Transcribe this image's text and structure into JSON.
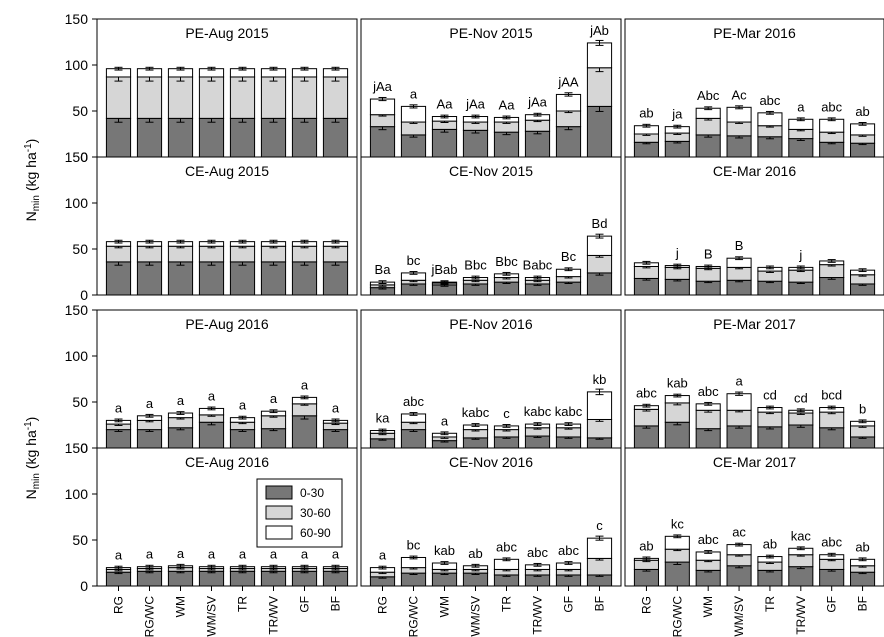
{
  "figure": {
    "ylabel_top": "N",
    "ylabel_sub": "min",
    "ylabel_rest": " (kg ha",
    "ylabel_sup": "-1",
    "ylabel_end": ")",
    "legend": [
      {
        "name": "0-30",
        "color": "#777777"
      },
      {
        "name": "30-60",
        "color": "#d6d6d6"
      },
      {
        "name": "60-90",
        "color": "#ffffff"
      }
    ],
    "yticks": [
      "0",
      "50",
      "100",
      "150"
    ],
    "categories": [
      "RG",
      "RG/WC",
      "WM",
      "WM/SV",
      "TR",
      "TR/WV",
      "GF",
      "BF"
    ]
  },
  "chart_data": [
    {
      "type": "bar",
      "title": "PE-Aug 2015",
      "categories": [
        "RG",
        "RG/WC",
        "WM",
        "WM/SV",
        "TR",
        "TR/WV",
        "GF",
        "BF"
      ],
      "ylim": [
        0,
        150
      ],
      "series": [
        {
          "name": "0-30",
          "values": [
            42,
            42,
            42,
            42,
            42,
            42,
            42,
            42
          ]
        },
        {
          "name": "30-60",
          "values": [
            45,
            45,
            45,
            45,
            45,
            45,
            45,
            45
          ]
        },
        {
          "name": "60-90",
          "values": [
            9,
            9,
            9,
            9,
            9,
            9,
            9,
            9
          ]
        }
      ],
      "labels": [
        "",
        "",
        "",
        "",
        "",
        "",
        "",
        ""
      ]
    },
    {
      "type": "bar",
      "title": "PE-Nov 2015",
      "categories": [
        "RG",
        "RG/WC",
        "WM",
        "WM/SV",
        "TR",
        "TR/WV",
        "GF",
        "BF"
      ],
      "ylim": [
        0,
        150
      ],
      "series": [
        {
          "name": "0-30",
          "values": [
            33,
            24,
            30,
            29,
            27,
            28,
            33,
            55
          ]
        },
        {
          "name": "30-60",
          "values": [
            13,
            14,
            9,
            9,
            11,
            12,
            17,
            42
          ]
        },
        {
          "name": "60-90",
          "values": [
            17,
            17,
            5,
            6,
            5,
            6,
            18,
            27
          ]
        }
      ],
      "labels": [
        "jAa",
        "a",
        "Aa",
        "jAa",
        "Aa",
        "jAa",
        "jAA",
        "jAb"
      ]
    },
    {
      "type": "bar",
      "title": "PE-Mar 2016",
      "categories": [
        "RG",
        "RG/WC",
        "WM",
        "WM/SV",
        "TR",
        "TR/WV",
        "GF",
        "BF"
      ],
      "ylim": [
        0,
        150
      ],
      "series": [
        {
          "name": "0-30",
          "values": [
            16,
            17,
            24,
            23,
            22,
            20,
            16,
            15
          ]
        },
        {
          "name": "30-60",
          "values": [
            9,
            9,
            18,
            15,
            12,
            10,
            11,
            9
          ]
        },
        {
          "name": "60-90",
          "values": [
            9,
            7,
            11,
            16,
            14,
            11,
            14,
            12
          ]
        }
      ],
      "labels": [
        "ab",
        "ja",
        "Abc",
        "Ac",
        "abc",
        "a",
        "abc",
        "ab"
      ]
    },
    {
      "type": "bar",
      "title": "CE-Aug 2015",
      "categories": [
        "RG",
        "RG/WC",
        "WM",
        "WM/SV",
        "TR",
        "TR/WV",
        "GF",
        "BF"
      ],
      "ylim": [
        0,
        150
      ],
      "series": [
        {
          "name": "0-30",
          "values": [
            36,
            36,
            36,
            36,
            36,
            36,
            36,
            36
          ]
        },
        {
          "name": "30-60",
          "values": [
            17,
            17,
            17,
            17,
            17,
            17,
            17,
            17
          ]
        },
        {
          "name": "60-90",
          "values": [
            5,
            5,
            5,
            5,
            5,
            5,
            5,
            5
          ]
        }
      ],
      "labels": [
        "",
        "",
        "",
        "",
        "",
        "",
        "",
        ""
      ]
    },
    {
      "type": "bar",
      "title": "CE-Nov 2015",
      "categories": [
        "RG",
        "RG/WC",
        "WM",
        "WM/SV",
        "TR",
        "TR/WV",
        "GF",
        "BF"
      ],
      "ylim": [
        0,
        150
      ],
      "series": [
        {
          "name": "0-30",
          "values": [
            8,
            12,
            11,
            12,
            14,
            12,
            14,
            24
          ]
        },
        {
          "name": "30-60",
          "values": [
            3,
            4,
            2,
            4,
            5,
            4,
            6,
            19
          ]
        },
        {
          "name": "60-90",
          "values": [
            3,
            8,
            1,
            3,
            4,
            3,
            8,
            21
          ]
        }
      ],
      "labels": [
        "Ba",
        "bc",
        "jBab",
        "Bbc",
        "Bbc",
        "Babc",
        "Bc",
        "Bd"
      ]
    },
    {
      "type": "bar",
      "title": "CE-Mar 2016",
      "categories": [
        "RG",
        "RG/WC",
        "WM",
        "WM/SV",
        "TR",
        "TR/WV",
        "GF",
        "BF"
      ],
      "ylim": [
        0,
        150
      ],
      "series": [
        {
          "name": "0-30",
          "values": [
            18,
            17,
            15,
            16,
            15,
            14,
            19,
            12
          ]
        },
        {
          "name": "30-60",
          "values": [
            13,
            13,
            14,
            14,
            11,
            13,
            14,
            10
          ]
        },
        {
          "name": "60-90",
          "values": [
            4,
            2,
            2,
            10,
            4,
            3,
            4,
            5
          ]
        }
      ],
      "labels": [
        "",
        "j",
        "B",
        "B",
        "",
        "j",
        "",
        ""
      ]
    },
    {
      "type": "bar",
      "title": "PE-Aug 2016",
      "categories": [
        "RG",
        "RG/WC",
        "WM",
        "WM/SV",
        "TR",
        "TR/WV",
        "GF",
        "BF"
      ],
      "ylim": [
        0,
        150
      ],
      "series": [
        {
          "name": "0-30",
          "values": [
            20,
            20,
            22,
            28,
            20,
            21,
            35,
            20
          ]
        },
        {
          "name": "30-60",
          "values": [
            6,
            10,
            11,
            8,
            8,
            14,
            13,
            7
          ]
        },
        {
          "name": "60-90",
          "values": [
            4,
            5,
            5,
            7,
            5,
            5,
            7,
            3
          ]
        }
      ],
      "labels": [
        "a",
        "a",
        "a",
        "a",
        "a",
        "a",
        "a",
        "a"
      ]
    },
    {
      "type": "bar",
      "title": "PE-Nov 2016",
      "categories": [
        "RG",
        "RG/WC",
        "WM",
        "WM/SV",
        "TR",
        "TR/WV",
        "GF",
        "BF"
      ],
      "ylim": [
        0,
        150
      ],
      "series": [
        {
          "name": "0-30",
          "values": [
            10,
            20,
            8,
            11,
            12,
            13,
            12,
            11
          ]
        },
        {
          "name": "30-60",
          "values": [
            6,
            8,
            4,
            9,
            8,
            9,
            10,
            20
          ]
        },
        {
          "name": "60-90",
          "values": [
            3,
            9,
            4,
            5,
            4,
            4,
            4,
            30
          ]
        }
      ],
      "labels": [
        "ka",
        "abc",
        "a",
        "kabc",
        "c",
        "kabc",
        "kabc",
        "kb"
      ]
    },
    {
      "type": "bar",
      "title": "PE-Mar 2017",
      "categories": [
        "RG",
        "RG/WC",
        "WM",
        "WM/SV",
        "TR",
        "TR/WV",
        "GF",
        "BF"
      ],
      "ylim": [
        0,
        150
      ],
      "series": [
        {
          "name": "0-30",
          "values": [
            24,
            28,
            21,
            24,
            23,
            25,
            22,
            12
          ]
        },
        {
          "name": "30-60",
          "values": [
            18,
            21,
            20,
            17,
            16,
            13,
            17,
            12
          ]
        },
        {
          "name": "60-90",
          "values": [
            4,
            8,
            7,
            18,
            5,
            3,
            5,
            5
          ]
        }
      ],
      "labels": [
        "abc",
        "kab",
        "abc",
        "a",
        "cd",
        "cd",
        "bcd",
        "b"
      ]
    },
    {
      "type": "bar",
      "title": "CE-Aug 2016",
      "categories": [
        "RG",
        "RG/WC",
        "WM",
        "WM/SV",
        "TR",
        "TR/WV",
        "GF",
        "BF"
      ],
      "ylim": [
        0,
        150
      ],
      "series": [
        {
          "name": "0-30",
          "values": [
            15,
            16,
            16,
            16,
            16,
            16,
            16,
            16
          ]
        },
        {
          "name": "30-60",
          "values": [
            3,
            3,
            4,
            3,
            3,
            3,
            3,
            3
          ]
        },
        {
          "name": "60-90",
          "values": [
            2,
            2,
            2,
            2,
            2,
            2,
            2,
            2
          ]
        }
      ],
      "labels": [
        "a",
        "a",
        "a",
        "a",
        "a",
        "a",
        "a",
        "a"
      ]
    },
    {
      "type": "bar",
      "title": "CE-Nov 2016",
      "categories": [
        "RG",
        "RG/WC",
        "WM",
        "WM/SV",
        "TR",
        "TR/WV",
        "GF",
        "BF"
      ],
      "ylim": [
        0,
        150
      ],
      "series": [
        {
          "name": "0-30",
          "values": [
            10,
            14,
            14,
            14,
            12,
            12,
            12,
            12
          ]
        },
        {
          "name": "30-60",
          "values": [
            5,
            6,
            4,
            4,
            6,
            6,
            6,
            18
          ]
        },
        {
          "name": "60-90",
          "values": [
            5,
            11,
            7,
            4,
            11,
            5,
            7,
            22
          ]
        }
      ],
      "labels": [
        "a",
        "bc",
        "kab",
        "ab",
        "abc",
        "abc",
        "abc",
        "c"
      ]
    },
    {
      "type": "bar",
      "title": "CE-Mar 2017",
      "categories": [
        "RG",
        "RG/WC",
        "WM",
        "WM/SV",
        "TR",
        "TR/WV",
        "GF",
        "BF"
      ],
      "ylim": [
        0,
        150
      ],
      "series": [
        {
          "name": "0-30",
          "values": [
            18,
            26,
            17,
            22,
            17,
            21,
            18,
            15
          ]
        },
        {
          "name": "30-60",
          "values": [
            10,
            14,
            11,
            12,
            9,
            13,
            11,
            7
          ]
        },
        {
          "name": "60-90",
          "values": [
            2,
            14,
            9,
            11,
            6,
            7,
            5,
            7
          ]
        }
      ],
      "labels": [
        "ab",
        "kc",
        "abc",
        "ac",
        "ab",
        "kac",
        "abc",
        "ab"
      ]
    }
  ]
}
